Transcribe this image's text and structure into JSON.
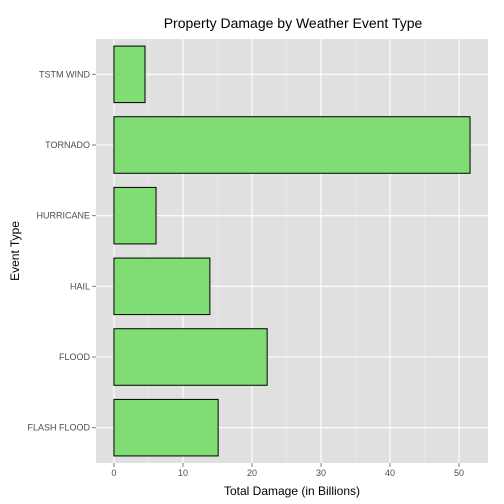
{
  "chart_data": {
    "type": "bar",
    "orientation": "horizontal",
    "title": "Property Damage by Weather Event Type",
    "xlabel": "Total Damage (in Billions)",
    "ylabel": "Event Type",
    "categories": [
      "FLASH FLOOD",
      "FLOOD",
      "HAIL",
      "HURRICANE",
      "TORNADO",
      "TSTM WIND"
    ],
    "values": [
      15.1,
      22.2,
      13.9,
      6.1,
      51.6,
      4.5
    ],
    "xlim": [
      -2.6,
      54.2
    ],
    "xticks": [
      0,
      10,
      20,
      30,
      40,
      50
    ],
    "grid": true,
    "colors": {
      "bar_fill": "#7fdd74",
      "bar_stroke": "#000000",
      "panel_bg": "#e0e0e0",
      "grid_major": "#ffffff",
      "grid_minor": "#ebebeb"
    }
  }
}
